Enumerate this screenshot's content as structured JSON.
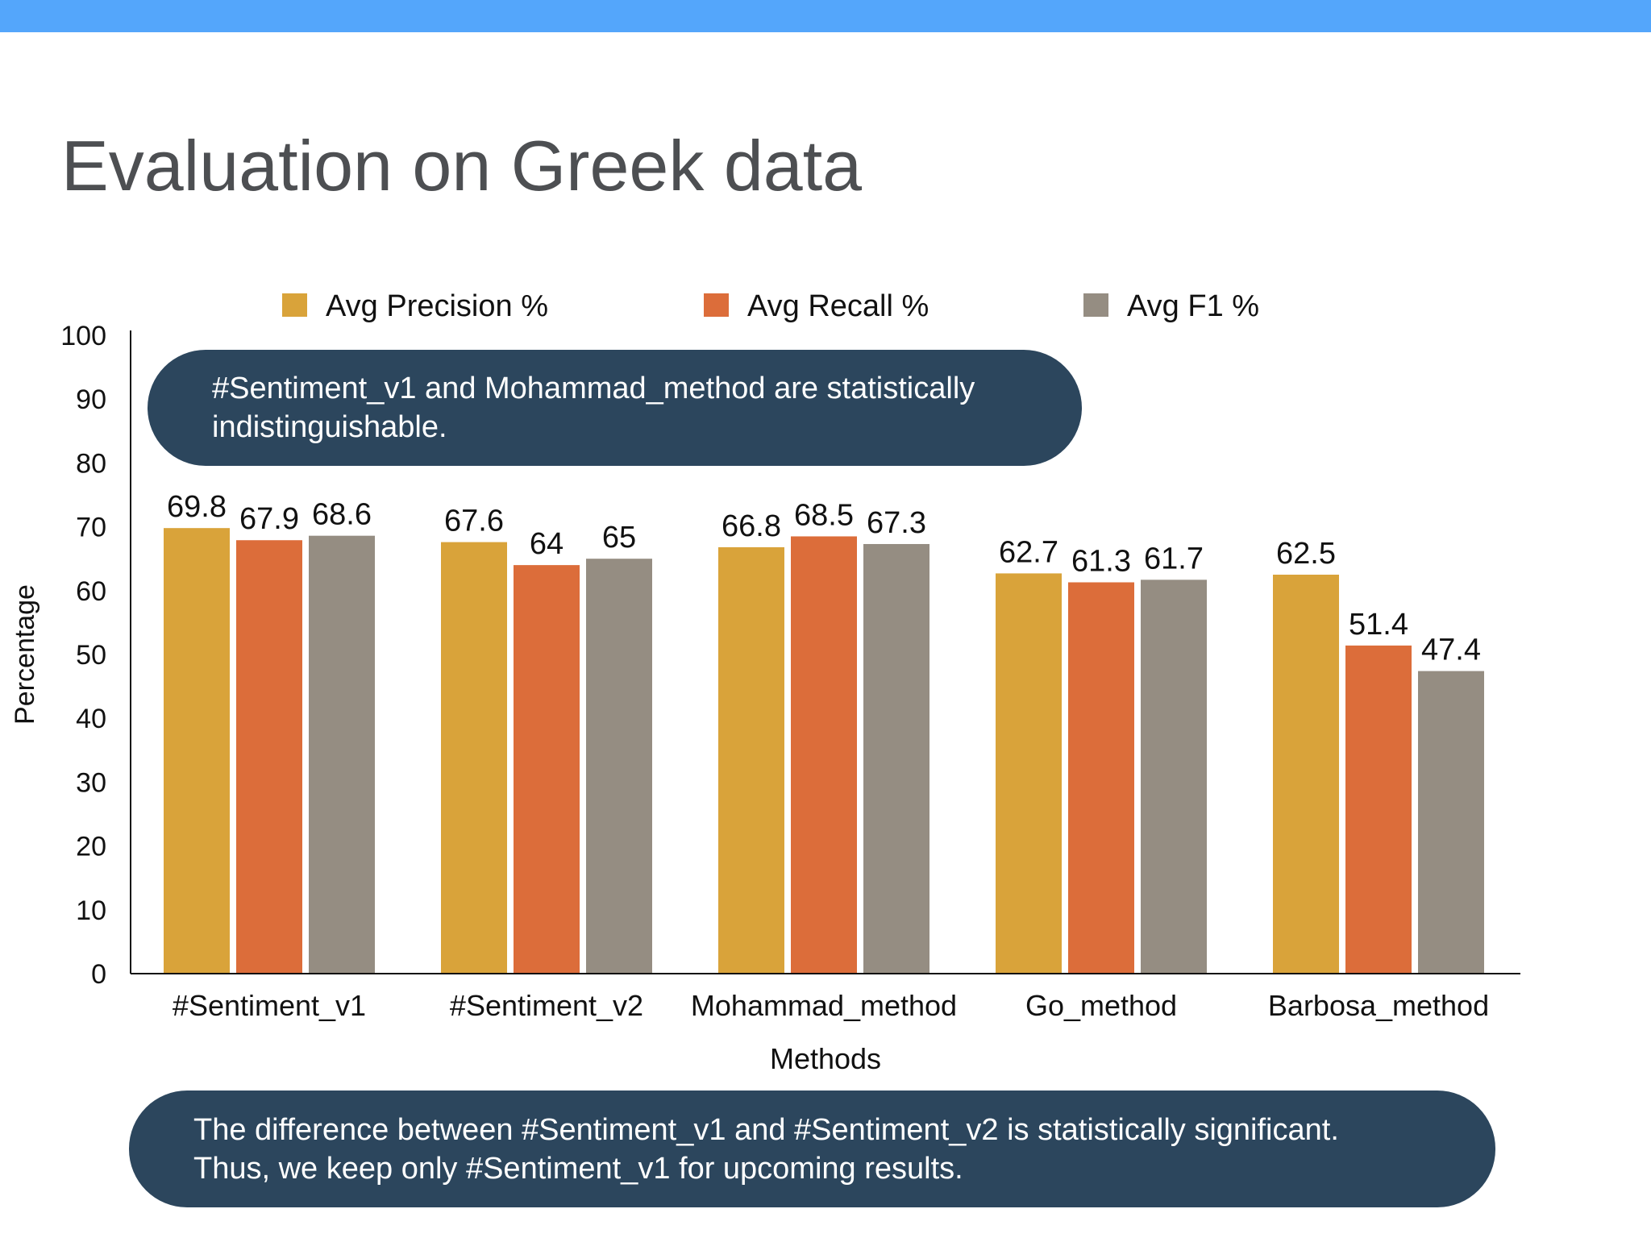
{
  "slide": {
    "title": "Evaluation on Greek data",
    "accent_color": "#54a6fb"
  },
  "callouts": {
    "top": {
      "lines": [
        "#Sentiment_v1 and Mohammad_method are statistically",
        "indistinguishable."
      ],
      "color": "#2c465d"
    },
    "bottom": {
      "lines": [
        "The difference between #Sentiment_v1 and #Sentiment_v2 is statistically significant.",
        "Thus, we keep only #Sentiment_v1 for upcoming results."
      ],
      "color": "#2c465d"
    }
  },
  "chart_data": {
    "type": "bar",
    "xlabel": "Methods",
    "ylabel": "Percentage",
    "ylim": [
      0,
      100
    ],
    "yticks": [
      0,
      10,
      20,
      30,
      40,
      50,
      60,
      70,
      80,
      90,
      100
    ],
    "grid": false,
    "legend_position": "top",
    "categories": [
      "#Sentiment_v1",
      "#Sentiment_v2",
      "Mohammad_method",
      "Go_method",
      "Barbosa_method"
    ],
    "series": [
      {
        "name": "Avg Precision %",
        "color": "#d9a33a",
        "values": [
          69.8,
          67.6,
          66.8,
          62.7,
          62.5
        ]
      },
      {
        "name": "Avg Recall %",
        "color": "#dc6d3a",
        "values": [
          67.9,
          64,
          68.5,
          61.3,
          51.4
        ]
      },
      {
        "name": "Avg F1 %",
        "color": "#958d82",
        "values": [
          68.6,
          65,
          67.3,
          61.7,
          47.4
        ]
      }
    ]
  }
}
